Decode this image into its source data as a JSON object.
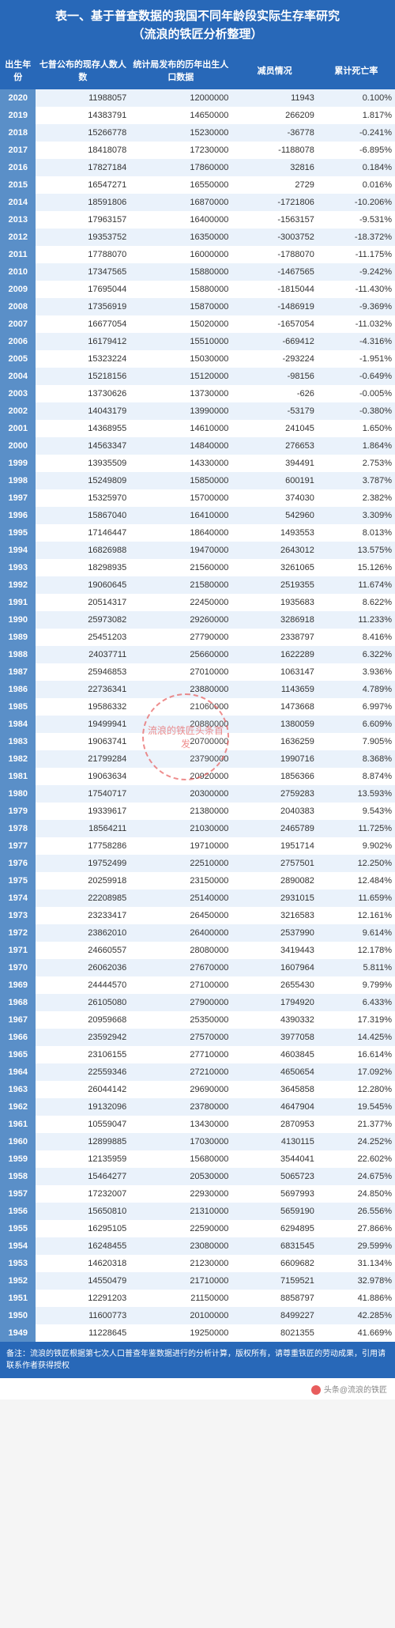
{
  "title_line1": "表一、基于普查数据的我国不同年龄段实际生存率研究",
  "title_line2": "（流浪的铁匠分析整理）",
  "columns": [
    "出生年份",
    "七普公布的现存人数人数",
    "统计局发布的历年出生人口数据",
    "减员情况",
    "累计死亡率"
  ],
  "watermark": "流浪的铁匠头条首发",
  "rows": [
    [
      "2020",
      "11988057",
      "12000000",
      "11943",
      "0.100%"
    ],
    [
      "2019",
      "14383791",
      "14650000",
      "266209",
      "1.817%"
    ],
    [
      "2018",
      "15266778",
      "15230000",
      "-36778",
      "-0.241%"
    ],
    [
      "2017",
      "18418078",
      "17230000",
      "-1188078",
      "-6.895%"
    ],
    [
      "2016",
      "17827184",
      "17860000",
      "32816",
      "0.184%"
    ],
    [
      "2015",
      "16547271",
      "16550000",
      "2729",
      "0.016%"
    ],
    [
      "2014",
      "18591806",
      "16870000",
      "-1721806",
      "-10.206%"
    ],
    [
      "2013",
      "17963157",
      "16400000",
      "-1563157",
      "-9.531%"
    ],
    [
      "2012",
      "19353752",
      "16350000",
      "-3003752",
      "-18.372%"
    ],
    [
      "2011",
      "17788070",
      "16000000",
      "-1788070",
      "-11.175%"
    ],
    [
      "2010",
      "17347565",
      "15880000",
      "-1467565",
      "-9.242%"
    ],
    [
      "2009",
      "17695044",
      "15880000",
      "-1815044",
      "-11.430%"
    ],
    [
      "2008",
      "17356919",
      "15870000",
      "-1486919",
      "-9.369%"
    ],
    [
      "2007",
      "16677054",
      "15020000",
      "-1657054",
      "-11.032%"
    ],
    [
      "2006",
      "16179412",
      "15510000",
      "-669412",
      "-4.316%"
    ],
    [
      "2005",
      "15323224",
      "15030000",
      "-293224",
      "-1.951%"
    ],
    [
      "2004",
      "15218156",
      "15120000",
      "-98156",
      "-0.649%"
    ],
    [
      "2003",
      "13730626",
      "13730000",
      "-626",
      "-0.005%"
    ],
    [
      "2002",
      "14043179",
      "13990000",
      "-53179",
      "-0.380%"
    ],
    [
      "2001",
      "14368955",
      "14610000",
      "241045",
      "1.650%"
    ],
    [
      "2000",
      "14563347",
      "14840000",
      "276653",
      "1.864%"
    ],
    [
      "1999",
      "13935509",
      "14330000",
      "394491",
      "2.753%"
    ],
    [
      "1998",
      "15249809",
      "15850000",
      "600191",
      "3.787%"
    ],
    [
      "1997",
      "15325970",
      "15700000",
      "374030",
      "2.382%"
    ],
    [
      "1996",
      "15867040",
      "16410000",
      "542960",
      "3.309%"
    ],
    [
      "1995",
      "17146447",
      "18640000",
      "1493553",
      "8.013%"
    ],
    [
      "1994",
      "16826988",
      "19470000",
      "2643012",
      "13.575%"
    ],
    [
      "1993",
      "18298935",
      "21560000",
      "3261065",
      "15.126%"
    ],
    [
      "1992",
      "19060645",
      "21580000",
      "2519355",
      "11.674%"
    ],
    [
      "1991",
      "20514317",
      "22450000",
      "1935683",
      "8.622%"
    ],
    [
      "1990",
      "25973082",
      "29260000",
      "3286918",
      "11.233%"
    ],
    [
      "1989",
      "25451203",
      "27790000",
      "2338797",
      "8.416%"
    ],
    [
      "1988",
      "24037711",
      "25660000",
      "1622289",
      "6.322%"
    ],
    [
      "1987",
      "25946853",
      "27010000",
      "1063147",
      "3.936%"
    ],
    [
      "1986",
      "22736341",
      "23880000",
      "1143659",
      "4.789%"
    ],
    [
      "1985",
      "19586332",
      "21060000",
      "1473668",
      "6.997%"
    ],
    [
      "1984",
      "19499941",
      "20880000",
      "1380059",
      "6.609%"
    ],
    [
      "1983",
      "19063741",
      "20700000",
      "1636259",
      "7.905%"
    ],
    [
      "1982",
      "21799284",
      "23790000",
      "1990716",
      "8.368%"
    ],
    [
      "1981",
      "19063634",
      "20920000",
      "1856366",
      "8.874%"
    ],
    [
      "1980",
      "17540717",
      "20300000",
      "2759283",
      "13.593%"
    ],
    [
      "1979",
      "19339617",
      "21380000",
      "2040383",
      "9.543%"
    ],
    [
      "1978",
      "18564211",
      "21030000",
      "2465789",
      "11.725%"
    ],
    [
      "1977",
      "17758286",
      "19710000",
      "1951714",
      "9.902%"
    ],
    [
      "1976",
      "19752499",
      "22510000",
      "2757501",
      "12.250%"
    ],
    [
      "1975",
      "20259918",
      "23150000",
      "2890082",
      "12.484%"
    ],
    [
      "1974",
      "22208985",
      "25140000",
      "2931015",
      "11.659%"
    ],
    [
      "1973",
      "23233417",
      "26450000",
      "3216583",
      "12.161%"
    ],
    [
      "1972",
      "23862010",
      "26400000",
      "2537990",
      "9.614%"
    ],
    [
      "1971",
      "24660557",
      "28080000",
      "3419443",
      "12.178%"
    ],
    [
      "1970",
      "26062036",
      "27670000",
      "1607964",
      "5.811%"
    ],
    [
      "1969",
      "24444570",
      "27100000",
      "2655430",
      "9.799%"
    ],
    [
      "1968",
      "26105080",
      "27900000",
      "1794920",
      "6.433%"
    ],
    [
      "1967",
      "20959668",
      "25350000",
      "4390332",
      "17.319%"
    ],
    [
      "1966",
      "23592942",
      "27570000",
      "3977058",
      "14.425%"
    ],
    [
      "1965",
      "23106155",
      "27710000",
      "4603845",
      "16.614%"
    ],
    [
      "1964",
      "22559346",
      "27210000",
      "4650654",
      "17.092%"
    ],
    [
      "1963",
      "26044142",
      "29690000",
      "3645858",
      "12.280%"
    ],
    [
      "1962",
      "19132096",
      "23780000",
      "4647904",
      "19.545%"
    ],
    [
      "1961",
      "10559047",
      "13430000",
      "2870953",
      "21.377%"
    ],
    [
      "1960",
      "12899885",
      "17030000",
      "4130115",
      "24.252%"
    ],
    [
      "1959",
      "12135959",
      "15680000",
      "3544041",
      "22.602%"
    ],
    [
      "1958",
      "15464277",
      "20530000",
      "5065723",
      "24.675%"
    ],
    [
      "1957",
      "17232007",
      "22930000",
      "5697993",
      "24.850%"
    ],
    [
      "1956",
      "15650810",
      "21310000",
      "5659190",
      "26.556%"
    ],
    [
      "1955",
      "16295105",
      "22590000",
      "6294895",
      "27.866%"
    ],
    [
      "1954",
      "16248455",
      "23080000",
      "6831545",
      "29.599%"
    ],
    [
      "1953",
      "14620318",
      "21230000",
      "6609682",
      "31.134%"
    ],
    [
      "1952",
      "14550479",
      "21710000",
      "7159521",
      "32.978%"
    ],
    [
      "1951",
      "12291203",
      "21150000",
      "8858797",
      "41.886%"
    ],
    [
      "1950",
      "11600773",
      "20100000",
      "8499227",
      "42.285%"
    ],
    [
      "1949",
      "11228645",
      "19250000",
      "8021355",
      "41.669%"
    ]
  ],
  "footer": "备注：流浪的铁匠根据第七次人口普查年鉴数据进行的分析计算，版权所有，请尊重铁匠的劳动成果，引用请联系作者获得授权",
  "attribution": "头条@流浪的铁匠"
}
